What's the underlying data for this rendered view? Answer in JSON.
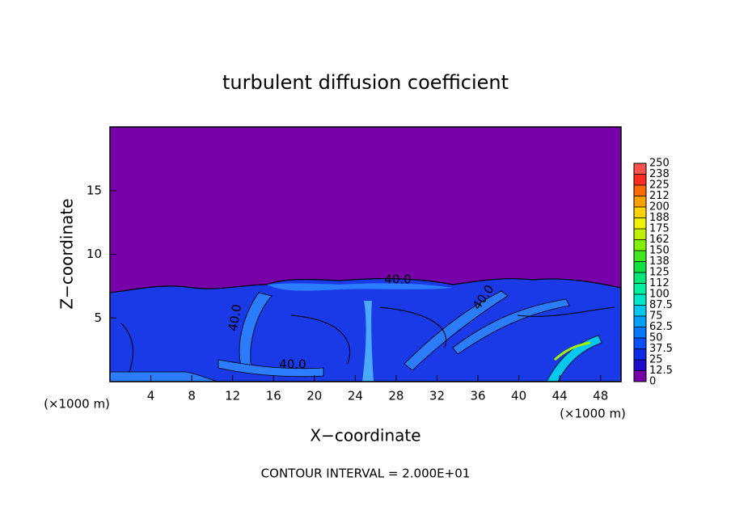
{
  "chart_data": {
    "type": "contour",
    "title": "turbulent diffusion coefficient",
    "x_label": "X−coordinate",
    "y_label": "Z−coordinate",
    "x_unit": "(×1000 m)",
    "xlim": [
      0,
      50
    ],
    "xticks": [
      4,
      8,
      12,
      16,
      20,
      24,
      28,
      32,
      36,
      40,
      44,
      48
    ],
    "ylim": [
      0,
      20
    ],
    "yticks": [
      5,
      10,
      15
    ],
    "contour_labels": [
      {
        "value": 40,
        "label": "40.0"
      },
      {
        "value": 40,
        "label": "40.0"
      },
      {
        "value": 40,
        "label": "40.0"
      },
      {
        "value": 40,
        "label": "40.0"
      }
    ],
    "colorbar": {
      "levels": [
        0,
        12.5,
        25,
        37.5,
        50,
        62.5,
        75,
        87.5,
        100,
        {
          "value": 112.5,
          "label": "112"
        },
        125,
        {
          "value": 137.5,
          "label": "138"
        },
        150,
        {
          "value": 162.5,
          "label": "162"
        },
        175,
        {
          "value": 187.5,
          "label": "188"
        },
        200,
        {
          "value": 212.5,
          "label": "212"
        },
        225,
        {
          "value": 237.5,
          "label": "238"
        },
        250
      ],
      "colors": [
        "#7800a8",
        "#1a0cc8",
        "#0a2ae6",
        "#0050ff",
        "#0078ff",
        "#00a0ff",
        "#00c8f0",
        "#00e6c8",
        "#00f0a0",
        "#00e678",
        "#10e040",
        "#40e620",
        "#80f000",
        "#c0f000",
        "#f0f000",
        "#ffd200",
        "#ffa000",
        "#ff6a00",
        "#ff2a20",
        "#ff5050"
      ]
    },
    "footer": "CONTOUR INTERVAL = 2.000E+01"
  }
}
